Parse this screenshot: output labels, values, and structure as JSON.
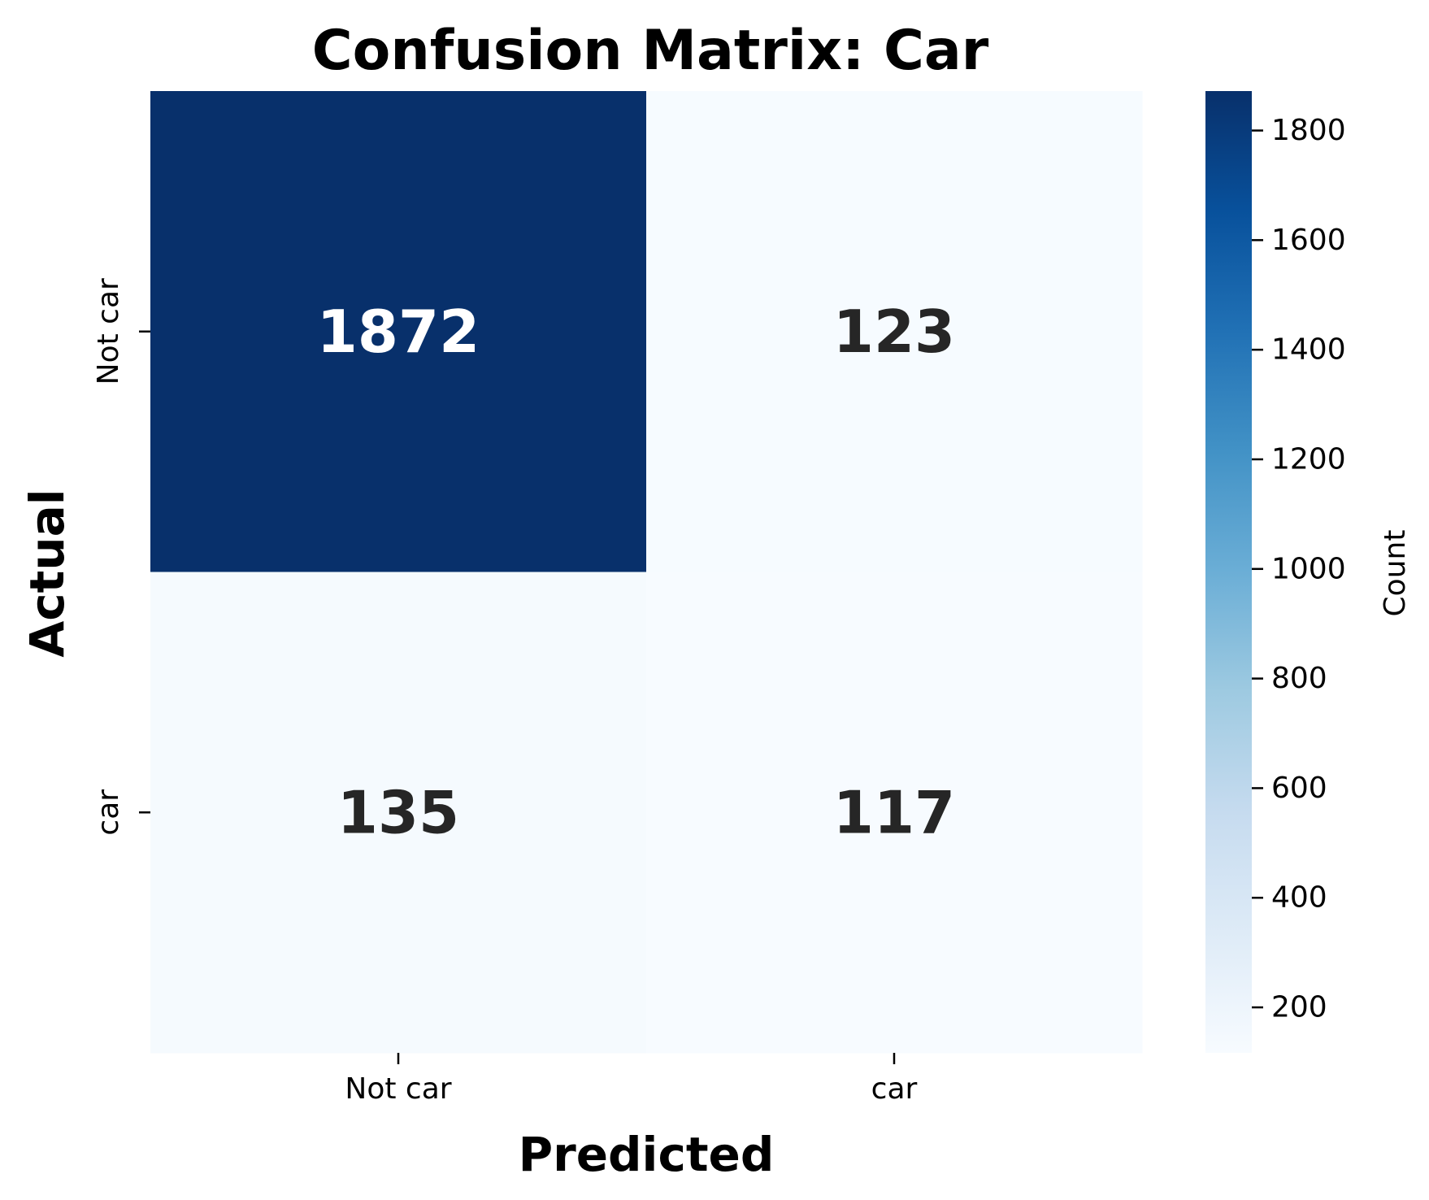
{
  "chart_data": {
    "type": "heatmap",
    "title": "Confusion Matrix: Car",
    "xlabel": "Predicted",
    "ylabel": "Actual",
    "x_categories": [
      "Not car",
      "car"
    ],
    "y_categories": [
      "Not car",
      "car"
    ],
    "values": [
      [
        1872,
        123
      ],
      [
        135,
        117
      ]
    ],
    "colormap": "Blues",
    "colors": {
      "low": "#f7fbff",
      "high": "#08306b",
      "light_text": "#ffffff",
      "dark_text": "#262626"
    },
    "colorbar": {
      "label": "Count",
      "range": [
        117,
        1872
      ],
      "ticks": [
        200,
        400,
        600,
        800,
        1000,
        1200,
        1400,
        1600,
        1800
      ]
    },
    "grid": false
  }
}
